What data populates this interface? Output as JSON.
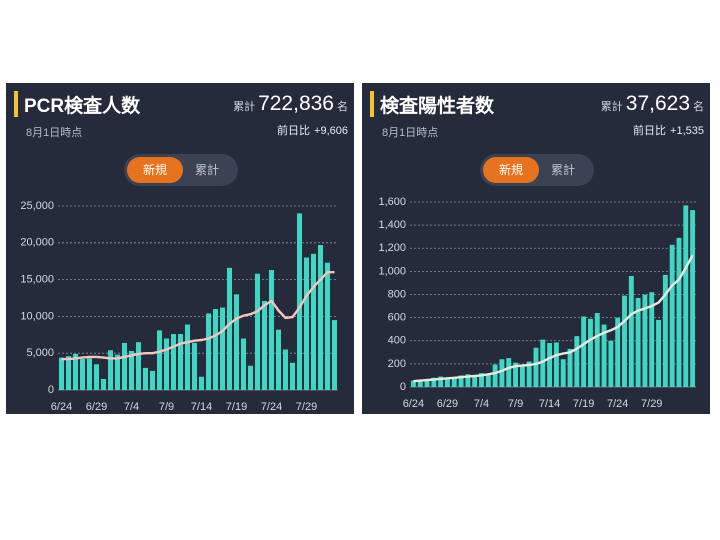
{
  "colors": {
    "bar": "#40d6c4",
    "panel": "#252b3b",
    "accent": "#f2c230",
    "toggle_active": "#e8731f",
    "avg_left": "#f4c6c2",
    "avg_right": "#e9e9df",
    "grid": "#8a8f9c"
  },
  "left": {
    "title": "PCR検査人数",
    "asof": "8月1日時点",
    "total_label": "累計",
    "total_value": "722,836",
    "total_unit": "名",
    "diff_label": "前日比",
    "diff_value": "+9,606",
    "toggle": {
      "new": "新規",
      "cumulative": "累計"
    }
  },
  "right": {
    "title": "検査陽性者数",
    "asof": "8月1日時点",
    "total_label": "累計",
    "total_value": "37,623",
    "total_unit": "名",
    "diff_label": "前日比",
    "diff_value": "+1,535",
    "toggle": {
      "new": "新規",
      "cumulative": "累計"
    }
  },
  "chart_data": [
    {
      "type": "bar",
      "x_labels": [
        "6/24",
        "6/29",
        "7/4",
        "7/9",
        "7/14",
        "7/19",
        "7/24",
        "7/29"
      ],
      "y_ticks": [
        "0",
        "5,000",
        "10,000",
        "15,000",
        "20,000",
        "25,000"
      ],
      "ylim": [
        0,
        25000
      ],
      "grid": true,
      "series": [
        {
          "type": "bar",
          "values": [
            4400,
            4600,
            4900,
            4200,
            4300,
            3500,
            1500,
            5400,
            4800,
            6400,
            5300,
            6500,
            3000,
            2600,
            8100,
            7000,
            7600,
            7600,
            8900,
            6400,
            1800,
            10400,
            11000,
            11200,
            16600,
            13000,
            7000,
            3300,
            15800,
            12100,
            16300,
            8200,
            5500,
            3700,
            24000,
            18000,
            18500,
            19700,
            17300,
            9500
          ]
        },
        {
          "type": "line",
          "values": [
            4200,
            4200,
            4300,
            4400,
            4500,
            4500,
            4400,
            4300,
            4300,
            4500,
            4700,
            4900,
            5000,
            5000,
            5200,
            5500,
            5900,
            6300,
            6500,
            6700,
            6800,
            7000,
            7400,
            8000,
            9000,
            9700,
            10100,
            10300,
            10700,
            11500,
            12100,
            10800,
            9800,
            9900,
            11200,
            12800,
            14000,
            15000,
            16000,
            16000
          ]
        }
      ]
    },
    {
      "type": "bar",
      "x_labels": [
        "6/24",
        "6/29",
        "7/4",
        "7/9",
        "7/14",
        "7/19",
        "7/24",
        "7/29"
      ],
      "y_ticks": [
        "0",
        "200",
        "400",
        "600",
        "800",
        "1,000",
        "1,200",
        "1,400",
        "1,600"
      ],
      "ylim": [
        0,
        1600
      ],
      "grid": true,
      "series": [
        {
          "type": "bar",
          "values": [
            55,
            50,
            70,
            80,
            90,
            75,
            80,
            100,
            110,
            100,
            120,
            110,
            195,
            240,
            250,
            210,
            180,
            220,
            340,
            410,
            380,
            385,
            240,
            330,
            440,
            610,
            590,
            640,
            540,
            400,
            600,
            790,
            960,
            770,
            800,
            820,
            580,
            970,
            1230,
            1290,
            1570,
            1530
          ]
        },
        {
          "type": "line",
          "values": [
            50,
            55,
            60,
            65,
            70,
            75,
            80,
            85,
            90,
            95,
            100,
            110,
            120,
            140,
            165,
            180,
            185,
            190,
            200,
            220,
            250,
            275,
            290,
            300,
            330,
            370,
            410,
            440,
            470,
            490,
            520,
            570,
            630,
            660,
            680,
            700,
            730,
            800,
            880,
            930,
            1030,
            1140
          ]
        }
      ]
    }
  ]
}
